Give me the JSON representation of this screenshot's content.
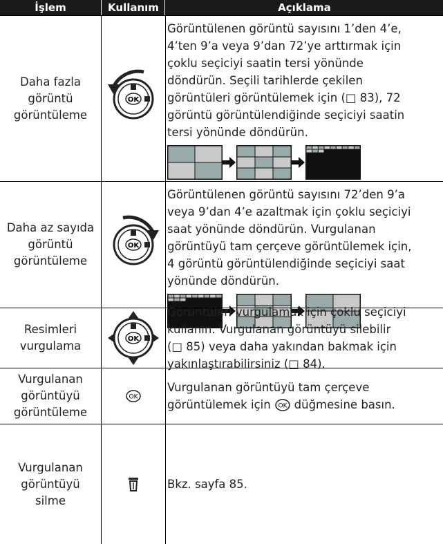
{
  "table": {
    "header": [
      "İşlem",
      "Kullanım",
      "Açıklama"
    ],
    "rows": [
      {
        "operation": [
          "Daha fazla",
          "görüntü",
          "görüntüleme"
        ],
        "description": [
          "Görüntülenen görüntü sayısını 1’den 4’e,",
          "4’ten 9’a veya 9’dan 72’ye arttırmak için",
          "çoklu seçiciyi saatin tersi yönünde",
          "döndürün. Seçili tarihlerde çekilen",
          "görüntüleri görüntülemek için (□ 83), 72",
          "görüntü görüntülendiğinde seçiciyi saatin",
          "tersi yönünde döndürün."
        ]
      },
      {
        "operation": [
          "Daha az sayıda",
          "görüntü",
          "görüntüleme"
        ],
        "description": [
          "Görüntülenen görüntü sayısını 72’den 9’a",
          "veya 9’dan 4’e azaltmak için çoklu seçiciyi",
          "saat yönünde döndürün. Vurgulanan",
          "görüntüyü tam çerçeve görüntülemek için,",
          "4 görüntü görüntülendiğinde seçiciyi saat",
          "yönünde döndürün."
        ]
      },
      {
        "operation": [
          "Resimleri",
          "vurgulama"
        ],
        "description": [
          "Görüntüleri vurgulamak için çoklu seçiciyi",
          "kullanın. Vurgulanan görüntüyü silebilir",
          "(□ 85) veya daha yakından bakmak için",
          "yakınlaştırabilirsiniz (□ 84)."
        ]
      },
      {
        "operation": [
          "Vurgulanan",
          "görüntüyü",
          "görüntüleme"
        ],
        "description": [
          "Vurgulanan görüntüyü tam çerçeve",
          [
            "görüntülemek için",
            "düğmesine basın."
          ]
        ]
      },
      {
        "operation": [
          "Vurgulanan",
          "görüntüyü",
          "silme"
        ],
        "description": [
          "Bkz. sayfa 85."
        ]
      }
    ]
  }
}
